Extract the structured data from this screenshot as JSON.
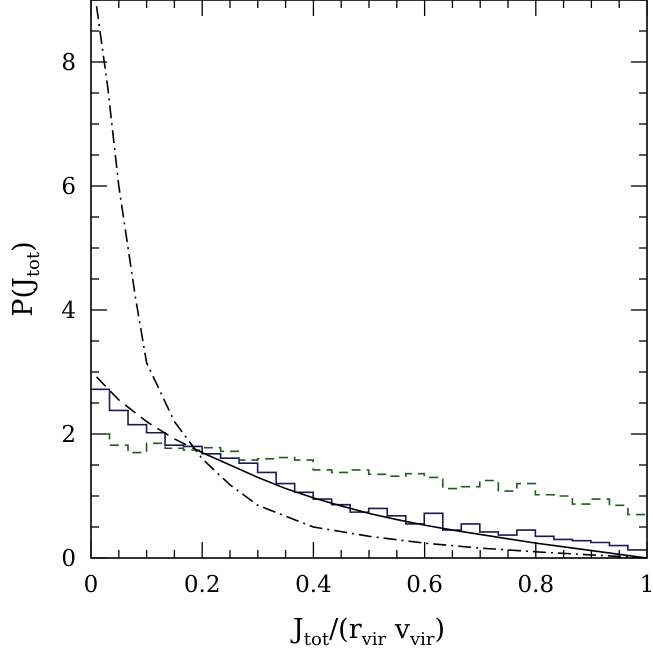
{
  "chart_data": {
    "type": "line",
    "title": "",
    "xlabel": {
      "main": "J",
      "sub1": "tot",
      "mid": "/(r",
      "sub2": "vir",
      "gap": " v",
      "sub3": "vir",
      "end": ")"
    },
    "ylabel": {
      "main": "P(J",
      "sub": "tot",
      "end": ")"
    },
    "xlim": [
      0,
      1
    ],
    "ylim": [
      0,
      9
    ],
    "x_ticks": [
      {
        "value": 0,
        "label": "0"
      },
      {
        "value": 0.2,
        "label": "0.2"
      },
      {
        "value": 0.4,
        "label": "0.4"
      },
      {
        "value": 0.6,
        "label": "0.6"
      },
      {
        "value": 0.8,
        "label": "0.8"
      },
      {
        "value": 1,
        "label": "1"
      }
    ],
    "y_ticks": [
      {
        "value": 0,
        "label": "0"
      },
      {
        "value": 2,
        "label": "2"
      },
      {
        "value": 4,
        "label": "4"
      },
      {
        "value": 6,
        "label": "6"
      },
      {
        "value": 8,
        "label": "8"
      }
    ],
    "x_minor_step": 0.05,
    "y_minor_step": 0.5,
    "series": [
      {
        "name": "histogram-solid",
        "kind": "step",
        "color": "#1a1a55",
        "dash": "",
        "bin_width": 0.0333,
        "values": [
          2.72,
          2.38,
          2.15,
          2.02,
          1.82,
          1.8,
          1.68,
          1.61,
          1.53,
          1.38,
          1.2,
          1.06,
          0.95,
          0.86,
          0.74,
          0.8,
          0.68,
          0.55,
          0.72,
          0.45,
          0.55,
          0.42,
          0.37,
          0.45,
          0.35,
          0.3,
          0.28,
          0.25,
          0.2,
          0.13
        ]
      },
      {
        "name": "histogram-dashed-green",
        "kind": "step",
        "color": "#1f5a1f",
        "dash": "9,6",
        "bin_width": 0.0333,
        "values": [
          2.0,
          1.82,
          1.7,
          1.85,
          1.77,
          1.74,
          1.78,
          1.72,
          1.58,
          1.6,
          1.62,
          1.58,
          1.42,
          1.38,
          1.42,
          1.35,
          1.32,
          1.36,
          1.3,
          1.12,
          1.15,
          1.25,
          1.08,
          1.2,
          1.02,
          1.0,
          0.87,
          0.95,
          0.85,
          0.7
        ]
      },
      {
        "name": "fit-solid",
        "kind": "line",
        "color": "#000000",
        "dash": "",
        "x": [
          0.2,
          0.25,
          0.3,
          0.35,
          0.4,
          0.45,
          0.5,
          0.55,
          0.6,
          0.65,
          0.7,
          0.75,
          0.8,
          0.85,
          0.9,
          0.95,
          1.0
        ],
        "y": [
          1.7,
          1.5,
          1.3,
          1.12,
          0.97,
          0.84,
          0.72,
          0.62,
          0.53,
          0.45,
          0.38,
          0.31,
          0.24,
          0.18,
          0.12,
          0.06,
          0.0
        ]
      },
      {
        "name": "fit-long-dash",
        "kind": "line",
        "color": "#000000",
        "dash": "13,7",
        "x": [
          0.01,
          0.05,
          0.1,
          0.15,
          0.2
        ],
        "y": [
          2.92,
          2.55,
          2.2,
          1.92,
          1.7
        ]
      },
      {
        "name": "fit-dash-dot",
        "kind": "line",
        "color": "#000000",
        "dash": "13,5,2,5",
        "x": [
          0.01,
          0.03,
          0.05,
          0.08,
          0.1,
          0.15,
          0.2,
          0.25,
          0.3,
          0.4,
          0.5,
          0.6,
          0.7,
          0.8,
          0.9,
          1.0
        ],
        "y": [
          8.9,
          7.6,
          6.0,
          4.2,
          3.15,
          2.2,
          1.6,
          1.18,
          0.85,
          0.5,
          0.35,
          0.24,
          0.16,
          0.1,
          0.05,
          0.0
        ]
      }
    ]
  }
}
